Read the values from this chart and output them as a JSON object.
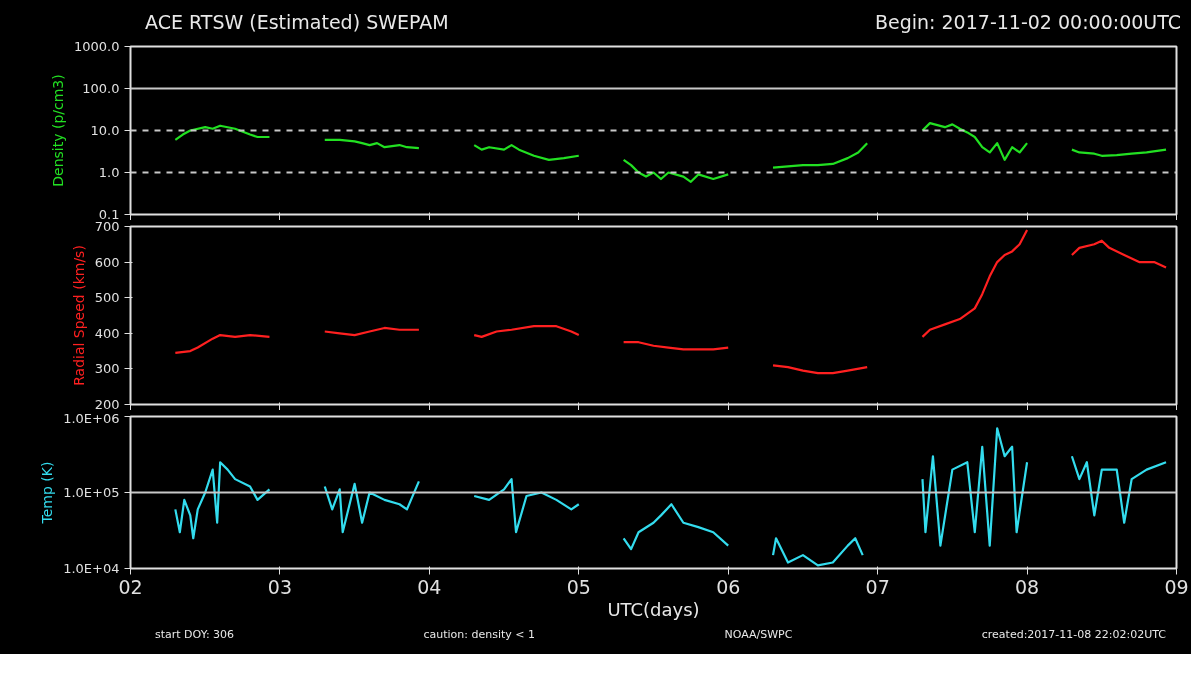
{
  "chart_data": [
    {
      "type": "line",
      "title": "ACE RTSW (Estimated) SWEPAM",
      "subtitle": "Begin: 2017-11-02 00:00:00UTC",
      "ylabel": "Density (p/cm3)",
      "log": "y",
      "grid": false,
      "tick_labels": "y",
      "xlim": [
        2,
        9
      ],
      "xticks": [
        2,
        3,
        4,
        5,
        6,
        7,
        8,
        9
      ],
      "ylim": [
        0.1,
        1000
      ],
      "yticks": [
        {
          "value": 0.1,
          "label": "0.1"
        },
        {
          "value": 1,
          "label": "1.0"
        },
        {
          "value": 10,
          "label": "10.0"
        },
        {
          "value": 100,
          "label": "100.0"
        },
        {
          "value": 1000,
          "label": "1000.0"
        }
      ],
      "ref_lines": [
        {
          "axis": "y",
          "value": 100,
          "color": "#c8c8c8",
          "line_style": "solid"
        },
        {
          "axis": "y",
          "value": 10,
          "color": "#c8c8c8",
          "line_style": "dashed"
        },
        {
          "axis": "y",
          "value": 1,
          "color": "#c8c8c8",
          "line_style": "dashed"
        }
      ],
      "x": [
        2.3,
        2.35,
        2.4,
        2.5,
        2.55,
        2.6,
        2.7,
        2.8,
        2.85,
        2.93,
        3.1,
        3.3,
        3.4,
        3.5,
        3.55,
        3.6,
        3.65,
        3.7,
        3.8,
        3.85,
        3.93,
        4.1,
        4.3,
        4.35,
        4.4,
        4.5,
        4.55,
        4.6,
        4.7,
        4.8,
        4.9,
        5.0,
        5.15,
        5.3,
        5.35,
        5.4,
        5.45,
        5.5,
        5.55,
        5.6,
        5.7,
        5.75,
        5.8,
        5.9,
        6.0,
        6.15,
        6.3,
        6.4,
        6.5,
        6.6,
        6.7,
        6.8,
        6.87,
        6.93,
        7.1,
        7.3,
        7.35,
        7.45,
        7.5,
        7.55,
        7.6,
        7.65,
        7.7,
        7.75,
        7.8,
        7.85,
        7.9,
        7.95,
        8.0,
        8.15,
        8.3,
        8.35,
        8.45,
        8.5,
        8.6,
        8.7,
        8.8,
        8.93
      ],
      "series": [
        {
          "color": "#22e022",
          "values": [
            6,
            8,
            10,
            12,
            11,
            13,
            11,
            8,
            7,
            7,
            null,
            6,
            6,
            5.5,
            5,
            4.5,
            5,
            4,
            4.5,
            4,
            3.8,
            null,
            4.5,
            3.5,
            4,
            3.5,
            4.5,
            3.5,
            2.5,
            2,
            2.2,
            2.5,
            null,
            2,
            1.5,
            1.0,
            0.8,
            1.0,
            0.7,
            1.0,
            0.8,
            0.6,
            0.9,
            0.7,
            0.9,
            null,
            1.3,
            1.4,
            1.5,
            1.5,
            1.6,
            2.2,
            3,
            5,
            null,
            10,
            15,
            12,
            14,
            11,
            9,
            7,
            4,
            3,
            5,
            2,
            4,
            3,
            5,
            null,
            3.5,
            3,
            2.8,
            2.5,
            2.6,
            2.8,
            3,
            3.5
          ]
        }
      ]
    },
    {
      "type": "line",
      "ylabel": "Radial Speed (km/s)",
      "grid": false,
      "tick_labels": "y",
      "xlim": [
        2,
        9
      ],
      "xticks": [
        2,
        3,
        4,
        5,
        6,
        7,
        8,
        9
      ],
      "ylim": [
        200,
        700
      ],
      "yticks": [
        200,
        300,
        400,
        500,
        600,
        700
      ],
      "x": [
        2.3,
        2.4,
        2.45,
        2.55,
        2.6,
        2.7,
        2.8,
        2.93,
        3.1,
        3.3,
        3.4,
        3.5,
        3.6,
        3.7,
        3.8,
        3.93,
        4.1,
        4.3,
        4.35,
        4.45,
        4.55,
        4.7,
        4.85,
        4.95,
        5.0,
        5.15,
        5.3,
        5.4,
        5.5,
        5.6,
        5.7,
        5.8,
        5.9,
        6.0,
        6.15,
        6.3,
        6.4,
        6.5,
        6.6,
        6.7,
        6.8,
        6.93,
        7.1,
        7.3,
        7.35,
        7.45,
        7.55,
        7.65,
        7.7,
        7.75,
        7.8,
        7.85,
        7.9,
        7.95,
        8.0,
        8.15,
        8.3,
        8.35,
        8.45,
        8.5,
        8.55,
        8.65,
        8.75,
        8.85,
        8.93
      ],
      "series": [
        {
          "color": "#ff2020",
          "values": [
            345,
            350,
            360,
            385,
            395,
            390,
            395,
            390,
            null,
            405,
            400,
            395,
            405,
            415,
            410,
            410,
            null,
            395,
            390,
            405,
            410,
            420,
            420,
            405,
            395,
            null,
            375,
            375,
            365,
            360,
            355,
            355,
            355,
            360,
            null,
            310,
            305,
            295,
            288,
            288,
            295,
            305,
            null,
            390,
            410,
            425,
            440,
            470,
            510,
            560,
            600,
            620,
            630,
            650,
            690,
            null,
            620,
            640,
            650,
            660,
            640,
            620,
            600,
            600,
            585
          ]
        }
      ]
    },
    {
      "type": "line",
      "ylabel": "Temp (K)",
      "xlabel": "UTC(days)",
      "log": "y",
      "grid": false,
      "xlim": [
        2,
        9
      ],
      "xticks": [
        {
          "value": 2,
          "label": "02"
        },
        {
          "value": 3,
          "label": "03"
        },
        {
          "value": 4,
          "label": "04"
        },
        {
          "value": 5,
          "label": "05"
        },
        {
          "value": 6,
          "label": "06"
        },
        {
          "value": 7,
          "label": "07"
        },
        {
          "value": 8,
          "label": "08"
        },
        {
          "value": 9,
          "label": "09"
        }
      ],
      "ylim": [
        10000,
        1000000
      ],
      "yticks": [
        {
          "value": 10000,
          "label": "1.0E+04"
        },
        {
          "value": 100000,
          "label": "1.0E+05"
        },
        {
          "value": 1000000,
          "label": "1.0E+06"
        }
      ],
      "ref_lines": [
        {
          "axis": "y",
          "value": 100000,
          "color": "#c8c8c8",
          "line_style": "solid"
        }
      ],
      "annotations": [
        "start DOY: 306",
        "caution: density < 1",
        "NOAA/SWPC",
        "created:2017-11-08 22:02:02UTC"
      ],
      "x": [
        2.3,
        2.33,
        2.36,
        2.4,
        2.42,
        2.45,
        2.5,
        2.55,
        2.58,
        2.6,
        2.65,
        2.7,
        2.8,
        2.85,
        2.93,
        3.1,
        3.3,
        3.35,
        3.4,
        3.42,
        3.5,
        3.55,
        3.6,
        3.7,
        3.8,
        3.85,
        3.93,
        4.1,
        4.3,
        4.4,
        4.5,
        4.55,
        4.58,
        4.65,
        4.75,
        4.85,
        4.95,
        5.0,
        5.15,
        5.3,
        5.35,
        5.4,
        5.5,
        5.55,
        5.62,
        5.7,
        5.8,
        5.9,
        6.0,
        6.15,
        6.3,
        6.32,
        6.4,
        6.5,
        6.6,
        6.7,
        6.8,
        6.85,
        6.9,
        7.1,
        7.3,
        7.32,
        7.37,
        7.42,
        7.5,
        7.6,
        7.65,
        7.7,
        7.75,
        7.8,
        7.85,
        7.9,
        7.93,
        8.0,
        8.15,
        8.3,
        8.35,
        8.4,
        8.45,
        8.5,
        8.6,
        8.65,
        8.7,
        8.8,
        8.93
      ],
      "series": [
        {
          "color": "#33dcee",
          "values": [
            60000,
            30000,
            80000,
            50000,
            25000,
            60000,
            100000,
            200000,
            40000,
            250000,
            200000,
            150000,
            120000,
            80000,
            110000,
            null,
            120000,
            60000,
            110000,
            30000,
            130000,
            40000,
            100000,
            80000,
            70000,
            60000,
            140000,
            null,
            90000,
            80000,
            110000,
            150000,
            30000,
            90000,
            100000,
            80000,
            60000,
            70000,
            null,
            25000,
            18000,
            30000,
            40000,
            50000,
            70000,
            40000,
            35000,
            30000,
            20000,
            null,
            15000,
            25000,
            12000,
            15000,
            11000,
            12000,
            20000,
            25000,
            15000,
            null,
            150000,
            30000,
            300000,
            20000,
            200000,
            250000,
            30000,
            400000,
            20000,
            700000,
            300000,
            400000,
            30000,
            250000,
            null,
            300000,
            150000,
            250000,
            50000,
            200000,
            200000,
            40000,
            150000,
            200000,
            250000
          ]
        }
      ]
    }
  ]
}
